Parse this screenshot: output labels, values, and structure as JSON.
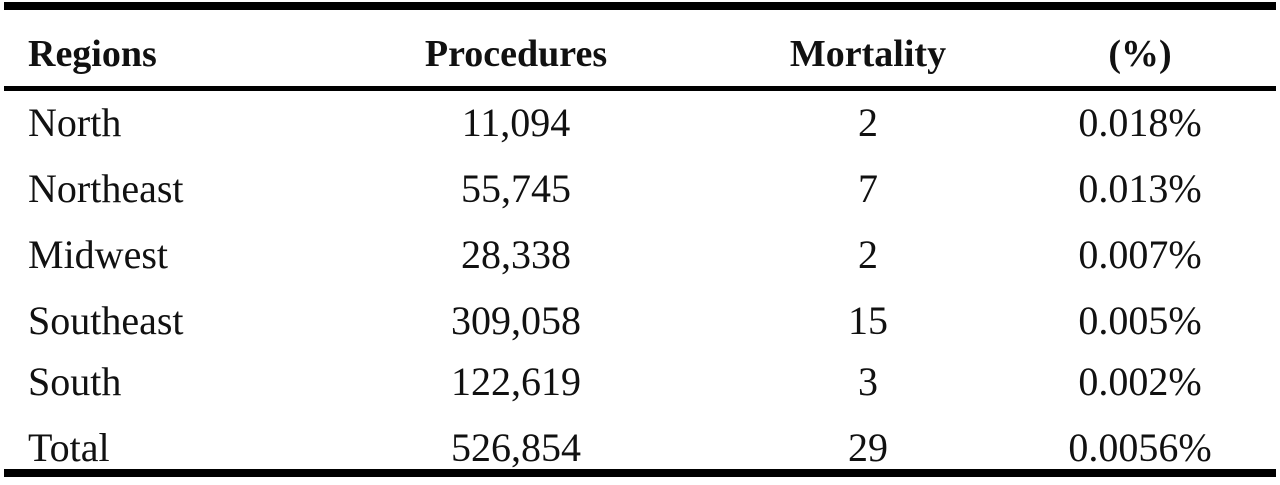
{
  "table": {
    "header": [
      "Regions",
      "Procedures",
      "Mortality",
      "(%)"
    ],
    "rows": [
      [
        "North",
        "11,094",
        "2",
        "0.018%"
      ],
      [
        "Northeast",
        "55,745",
        "7",
        "0.013%"
      ],
      [
        "Midwest",
        "28,338",
        "2",
        "0.007%"
      ],
      [
        "Southeast",
        "309,058",
        "15",
        "0.005%"
      ],
      [
        "South",
        "122,619",
        "3",
        "0.002%"
      ],
      [
        "Total",
        "526,854",
        "29",
        "0.0056%"
      ]
    ]
  }
}
